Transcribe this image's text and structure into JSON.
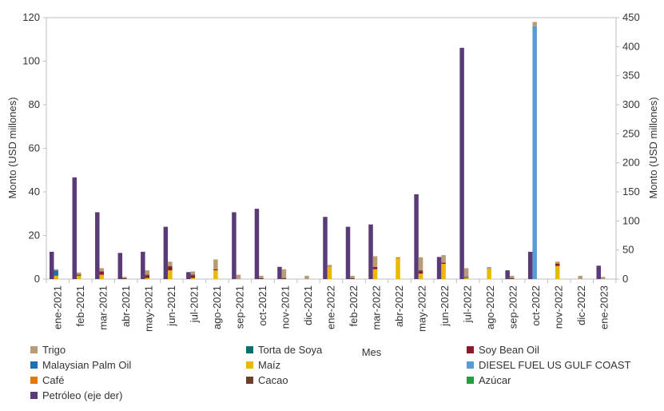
{
  "chart_data": {
    "type": "bar",
    "stacked": true,
    "xlabel": "Mes",
    "ylabel_left": "Monto (USD millones)",
    "ylabel_right": "Monto (USD millones)",
    "ylim_left": [
      0,
      120
    ],
    "yticks_left": [
      0,
      20,
      40,
      60,
      80,
      100,
      120
    ],
    "ylim_right": [
      0,
      450
    ],
    "yticks_right": [
      0,
      50,
      100,
      150,
      200,
      250,
      300,
      350,
      400,
      450
    ],
    "grid": false,
    "legend_position": "bottom",
    "categories": [
      "ene-2021",
      "feb-2021",
      "mar-2021",
      "abr-2021",
      "may-2021",
      "jun-2021",
      "jul-2021",
      "ago-2021",
      "sep-2021",
      "oct-2021",
      "nov-2021",
      "dic-2021",
      "ene-2022",
      "feb-2022",
      "mar-2022",
      "abr-2022",
      "may-2022",
      "jun-2022",
      "jul-2022",
      "ago-2022",
      "sep-2022",
      "oct-2022",
      "nov-2022",
      "dic-2022",
      "ene-2023"
    ],
    "stacked_series": [
      {
        "name": "Maíz",
        "color": "#E9B800",
        "values": [
          1.5,
          1.5,
          2,
          0,
          0.5,
          4,
          0.5,
          4,
          0,
          0,
          0,
          0,
          5.5,
          0,
          4.5,
          9.5,
          2.5,
          7,
          0.5,
          4.5,
          0,
          0,
          6,
          0,
          0
        ]
      },
      {
        "name": "Malaysian Palm Oil",
        "color": "#1F6FB4",
        "values": [
          2.5,
          0,
          0,
          0,
          0,
          0,
          0,
          0,
          0,
          0,
          0,
          0,
          0,
          0,
          0,
          0,
          0,
          0,
          0,
          0,
          0,
          0,
          0,
          0,
          0
        ]
      },
      {
        "name": "DIESEL FUEL US GULF COAST",
        "color": "#5B9BD5",
        "values": [
          0,
          0,
          0,
          0,
          0,
          0,
          0,
          0,
          0,
          0,
          0,
          0,
          0,
          0,
          0,
          0,
          0,
          0,
          0,
          0,
          0,
          116,
          0,
          0,
          0
        ]
      },
      {
        "name": "Soy Bean Oil",
        "color": "#8B1A2B",
        "values": [
          0,
          0,
          1.5,
          0,
          1,
          1.5,
          1,
          0.5,
          0,
          0,
          0,
          0,
          0,
          0,
          1,
          0,
          1,
          0.5,
          0,
          0,
          0,
          0,
          1,
          0,
          0
        ]
      },
      {
        "name": "Cacao",
        "color": "#6B3F2A",
        "values": [
          0,
          0.5,
          0,
          0.5,
          0.5,
          0.5,
          0.5,
          0,
          0,
          0.5,
          0.5,
          0,
          0,
          0.5,
          0,
          0,
          0.5,
          0,
          0.5,
          0,
          0.5,
          0,
          0,
          0,
          0
        ]
      },
      {
        "name": "Café",
        "color": "#E07B00",
        "values": [
          0,
          0,
          0,
          0,
          0,
          0,
          0,
          0,
          0,
          0,
          0,
          0,
          0,
          0,
          0,
          0.5,
          0,
          0,
          0,
          0,
          0,
          0,
          0.5,
          0,
          0
        ]
      },
      {
        "name": "Torta de Soya",
        "color": "#00706B",
        "values": [
          0,
          0,
          0,
          0,
          0,
          0,
          0,
          0,
          0,
          0,
          0,
          0,
          0,
          0,
          0,
          0,
          0,
          0,
          0,
          0,
          0,
          0,
          0,
          0,
          0
        ]
      },
      {
        "name": "Azúcar",
        "color": "#1FA03C",
        "values": [
          0,
          0,
          0,
          0,
          0,
          0,
          0,
          0,
          0,
          0,
          0,
          0,
          0,
          0,
          0,
          0,
          0,
          0,
          0,
          0,
          0,
          0,
          0,
          0,
          0
        ]
      },
      {
        "name": "Trigo",
        "color": "#B69D78",
        "values": [
          0.5,
          1,
          1.5,
          0.5,
          2,
          2,
          1.5,
          4.5,
          2,
          1,
          4,
          1.5,
          1,
          1,
          5,
          0,
          6,
          3.5,
          4,
          1,
          1,
          2,
          0.5,
          1.5,
          1
        ]
      }
    ],
    "right_axis_series": {
      "name": "Petróleo (eje der)",
      "color": "#5B3A78",
      "values": [
        47,
        175,
        115,
        45,
        47,
        90,
        12,
        0,
        115,
        121,
        21,
        0,
        107,
        90,
        94,
        0,
        146,
        38,
        398,
        0,
        15,
        47,
        0,
        0,
        23
      ]
    },
    "legend": [
      [
        "Trigo",
        "#B69D78"
      ],
      [
        "Torta de Soya",
        "#00706B"
      ],
      [
        "Soy Bean Oil",
        "#8B1A2B"
      ],
      [
        "Malaysian Palm Oil",
        "#1F6FB4"
      ],
      [
        "Maíz",
        "#E9B800"
      ],
      [
        "DIESEL FUEL US GULF COAST",
        "#5B9BD5"
      ],
      [
        "Café",
        "#E07B00"
      ],
      [
        "Cacao",
        "#6B3F2A"
      ],
      [
        "Azúcar",
        "#1FA03C"
      ],
      [
        "Petróleo (eje der)",
        "#5B3A78"
      ]
    ]
  }
}
